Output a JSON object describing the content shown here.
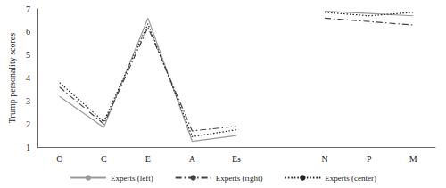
{
  "chart_data": {
    "type": "line",
    "y_label": "Trump personality scores",
    "categories": [
      "O",
      "C",
      "E",
      "A",
      "Es",
      null,
      "N",
      "P",
      "M"
    ],
    "series": [
      {
        "name": "Experts (left)",
        "color": "#9a9a9a",
        "line_style": "solid",
        "values": [
          3.2,
          1.85,
          6.6,
          1.25,
          1.5,
          null,
          6.9,
          6.8,
          6.7
        ]
      },
      {
        "name": "Experts (right)",
        "color": "#444444",
        "line_style": "dashdot",
        "values": [
          3.6,
          2.0,
          6.2,
          1.7,
          1.9,
          null,
          6.6,
          6.45,
          6.3
        ]
      },
      {
        "name": "Experts (center)",
        "color": "#222222",
        "line_style": "dotted",
        "values": [
          3.8,
          2.1,
          6.35,
          1.45,
          1.75,
          null,
          6.85,
          6.7,
          6.85
        ]
      }
    ],
    "ylim": [
      1,
      7
    ],
    "yticks": [
      1,
      2,
      3,
      4,
      5,
      6,
      7
    ],
    "grid": false,
    "legend": "bottom"
  }
}
